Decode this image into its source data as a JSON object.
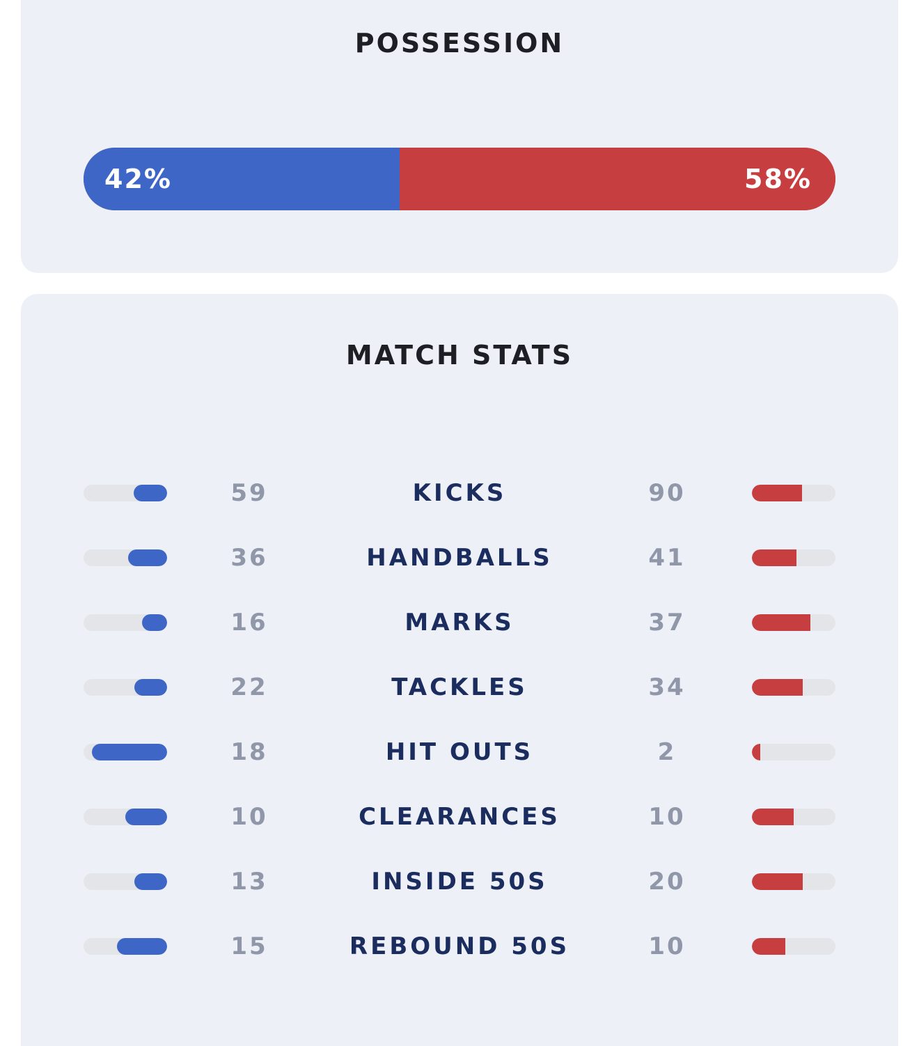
{
  "colors": {
    "card_background": "#edf0f7",
    "home": "#3e66c6",
    "away": "#c73e41",
    "track": "#e4e5e9",
    "value_text": "#8f97a8",
    "label_text": "#1b2c5e",
    "title_text": "#1e1f24"
  },
  "possession": {
    "title": "POSSESSION",
    "home_percent": 42,
    "away_percent": 58,
    "home_label": "42%",
    "away_label": "58%"
  },
  "match_stats": {
    "title": "MATCH STATS",
    "rows": [
      {
        "label": "KICKS",
        "home": "59",
        "away": "90",
        "home_fill": 0.4,
        "away_fill": 0.6
      },
      {
        "label": "HANDBALLS",
        "home": "36",
        "away": "41",
        "home_fill": 0.47,
        "away_fill": 0.53
      },
      {
        "label": "MARKS",
        "home": "16",
        "away": "37",
        "home_fill": 0.3,
        "away_fill": 0.7
      },
      {
        "label": "TACKLES",
        "home": "22",
        "away": "34",
        "home_fill": 0.39,
        "away_fill": 0.61
      },
      {
        "label": "HIT OUTS",
        "home": "18",
        "away": "2",
        "home_fill": 0.9,
        "away_fill": 0.1
      },
      {
        "label": "CLEARANCES",
        "home": "10",
        "away": "10",
        "home_fill": 0.5,
        "away_fill": 0.5
      },
      {
        "label": "INSIDE 50S",
        "home": "13",
        "away": "20",
        "home_fill": 0.39,
        "away_fill": 0.61
      },
      {
        "label": "REBOUND 50S",
        "home": "15",
        "away": "10",
        "home_fill": 0.6,
        "away_fill": 0.4
      }
    ]
  }
}
